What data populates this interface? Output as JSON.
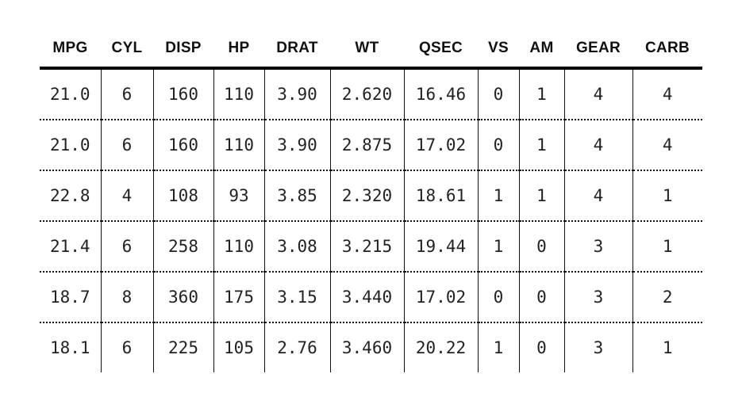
{
  "table": {
    "headers": [
      "MPG",
      "CYL",
      "DISP",
      "HP",
      "DRAT",
      "WT",
      "QSEC",
      "VS",
      "AM",
      "GEAR",
      "CARB"
    ],
    "rows": [
      [
        "21.0",
        "6",
        "160",
        "110",
        "3.90",
        "2.620",
        "16.46",
        "0",
        "1",
        "4",
        "4"
      ],
      [
        "21.0",
        "6",
        "160",
        "110",
        "3.90",
        "2.875",
        "17.02",
        "0",
        "1",
        "4",
        "4"
      ],
      [
        "22.8",
        "4",
        "108",
        "93",
        "3.85",
        "2.320",
        "18.61",
        "1",
        "1",
        "4",
        "1"
      ],
      [
        "21.4",
        "6",
        "258",
        "110",
        "3.08",
        "3.215",
        "19.44",
        "1",
        "0",
        "3",
        "1"
      ],
      [
        "18.7",
        "8",
        "360",
        "175",
        "3.15",
        "3.440",
        "17.02",
        "0",
        "0",
        "3",
        "2"
      ],
      [
        "18.1",
        "6",
        "225",
        "105",
        "2.76",
        "3.460",
        "20.22",
        "1",
        "0",
        "3",
        "1"
      ]
    ]
  }
}
